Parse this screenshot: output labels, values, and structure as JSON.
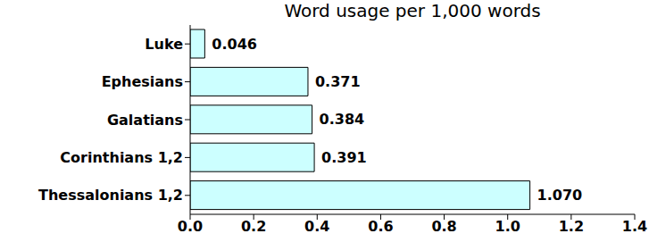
{
  "chart_data": {
    "type": "bar",
    "title": "Word usage per 1,000 words",
    "orientation": "horizontal",
    "categories": [
      "Luke",
      "Ephesians",
      "Galatians",
      "Corinthians 1,2",
      "Thessalonians 1,2"
    ],
    "values": [
      0.046,
      0.371,
      0.384,
      0.391,
      1.07
    ],
    "value_labels": [
      "0.046",
      "0.371",
      "0.384",
      "0.391",
      "1.070"
    ],
    "data_labels": true,
    "color": "#ccffff",
    "xlim": [
      0,
      1.4
    ],
    "xticks": [
      {
        "value": 0,
        "label": "0.0"
      },
      0.2,
      0.4,
      0.6,
      0.8,
      {
        "value": 1,
        "label": "1.0"
      },
      1.2,
      1.4
    ],
    "grid": false
  }
}
